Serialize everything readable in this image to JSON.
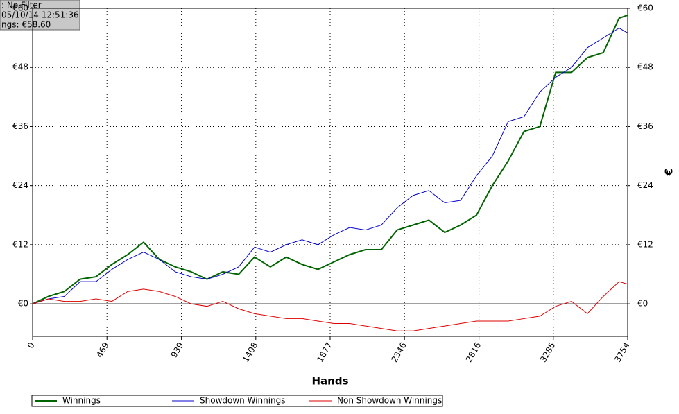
{
  "chart_data": {
    "type": "line",
    "x_label": "Hands",
    "y2_label": "€",
    "info": [
      ": No Filter",
      "05/10/14 12:51:36",
      "ngs: €58.60"
    ],
    "x": [
      0,
      100,
      200,
      300,
      400,
      500,
      600,
      700,
      800,
      900,
      1000,
      1100,
      1200,
      1300,
      1400,
      1500,
      1600,
      1700,
      1800,
      1900,
      2000,
      2100,
      2200,
      2300,
      2400,
      2500,
      2600,
      2700,
      2800,
      2900,
      3000,
      3100,
      3200,
      3300,
      3400,
      3500,
      3600,
      3700,
      3754
    ],
    "series": [
      {
        "name": "Winnings",
        "color": "#006400",
        "values": [
          0,
          1.5,
          2.5,
          5,
          5.5,
          8,
          10,
          12.5,
          9,
          7.5,
          6.5,
          5,
          6.5,
          6,
          9.5,
          7.5,
          9.5,
          8,
          7,
          8.5,
          10,
          11,
          11,
          15,
          16,
          17,
          14.5,
          16,
          18,
          24,
          29,
          35,
          36,
          47,
          47,
          50,
          51,
          58,
          58.6
        ]
      },
      {
        "name": "Showdown Winnings",
        "color": "#0000cc",
        "values": [
          0,
          1,
          1.5,
          4.5,
          4.5,
          7,
          9,
          10.5,
          9,
          6.5,
          5.5,
          5,
          6,
          7.5,
          11.5,
          10.5,
          12,
          13,
          12,
          14,
          15.5,
          15,
          16,
          19.5,
          22,
          23,
          20.5,
          21,
          26,
          30,
          37,
          38,
          43,
          46,
          48,
          52,
          54,
          56,
          55
        ]
      },
      {
        "name": "Non Showdown Winnings",
        "color": "#dd0000",
        "values": [
          0,
          1,
          0.5,
          0.5,
          1,
          0.5,
          2.5,
          3,
          2.5,
          1.5,
          0,
          -0.5,
          0.5,
          -1,
          -2,
          -2.5,
          -3,
          -3,
          -3.5,
          -4,
          -4,
          -4.5,
          -5,
          -5.5,
          -5.5,
          -5,
          -4.5,
          -4,
          -3.5,
          -3.5,
          -3.5,
          -3,
          -2.5,
          -0.5,
          0.5,
          -2,
          1.5,
          4.5,
          4
        ]
      }
    ],
    "xlim": [
      0,
      3754
    ],
    "xticks": [
      0,
      469,
      939,
      1408,
      1877,
      2346,
      2816,
      3285,
      3754
    ],
    "ylim": [
      -6.6,
      60
    ],
    "yticks": [
      {
        "value": 0,
        "label": "€0"
      },
      {
        "value": 12,
        "label": "€12"
      },
      {
        "value": 24,
        "label": "€24"
      },
      {
        "value": 36,
        "label": "€36"
      },
      {
        "value": 48,
        "label": "€48"
      },
      {
        "value": 60,
        "label": "€60"
      }
    ],
    "grid": true
  }
}
